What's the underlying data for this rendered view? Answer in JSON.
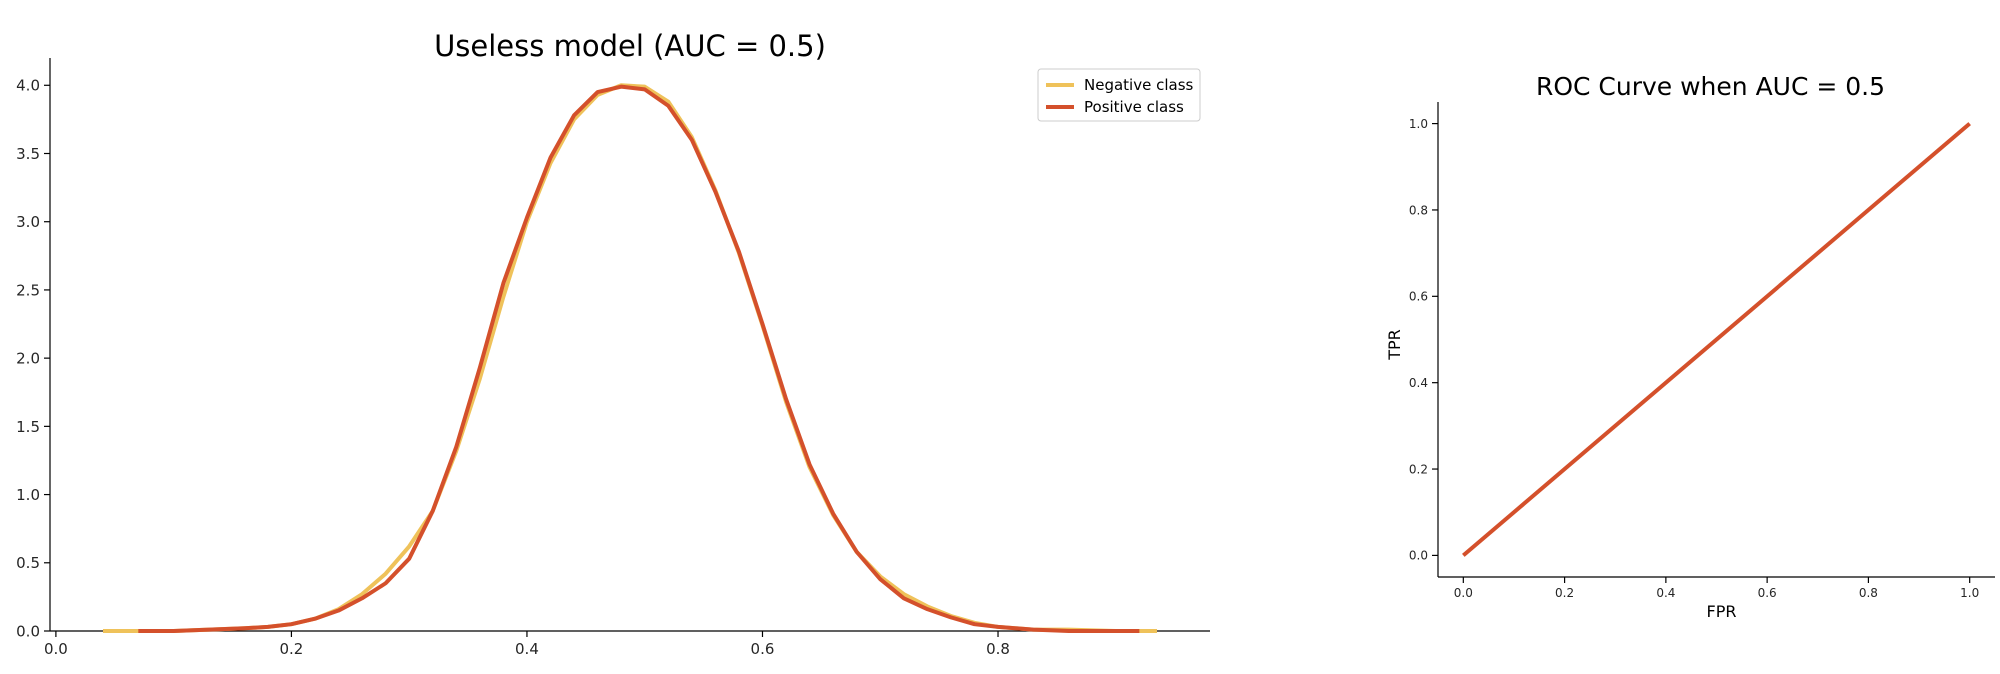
{
  "chart_data": [
    {
      "type": "line",
      "title": "Useless model (AUC = 0.5)",
      "xlabel": "",
      "ylabel": "",
      "xlim": [
        -0.005,
        0.98
      ],
      "ylim": [
        0,
        4.2
      ],
      "xticks": [
        0.0,
        0.2,
        0.4,
        0.6,
        0.8
      ],
      "yticks": [
        0.0,
        0.5,
        1.0,
        1.5,
        2.0,
        2.5,
        3.0,
        3.5,
        4.0
      ],
      "xtick_labels": [
        "0.0",
        "0.2",
        "0.4",
        "0.6",
        "0.8"
      ],
      "ytick_labels": [
        "0.0",
        "0.5",
        "1.0",
        "1.5",
        "2.0",
        "2.5",
        "3.0",
        "3.5",
        "4.0"
      ],
      "grid": false,
      "legend_position": "top-right",
      "series": [
        {
          "name": "Negative class",
          "color": "#EFC25A",
          "x": [
            0.04,
            0.07,
            0.1,
            0.13,
            0.16,
            0.18,
            0.2,
            0.22,
            0.24,
            0.26,
            0.28,
            0.3,
            0.32,
            0.34,
            0.36,
            0.38,
            0.4,
            0.42,
            0.44,
            0.46,
            0.48,
            0.5,
            0.52,
            0.54,
            0.56,
            0.58,
            0.6,
            0.62,
            0.64,
            0.66,
            0.68,
            0.7,
            0.72,
            0.74,
            0.76,
            0.78,
            0.8,
            0.83,
            0.86,
            0.9,
            0.935
          ],
          "y": [
            0.0,
            0.0,
            0.0,
            0.01,
            0.02,
            0.03,
            0.05,
            0.09,
            0.16,
            0.27,
            0.42,
            0.62,
            0.88,
            1.32,
            1.85,
            2.45,
            3.0,
            3.43,
            3.75,
            3.93,
            4.0,
            3.99,
            3.88,
            3.62,
            3.23,
            2.77,
            2.24,
            1.68,
            1.2,
            0.85,
            0.58,
            0.4,
            0.27,
            0.18,
            0.11,
            0.06,
            0.03,
            0.01,
            0.01,
            0.0,
            0.0
          ]
        },
        {
          "name": "Positive class",
          "color": "#D4502B",
          "x": [
            0.07,
            0.1,
            0.13,
            0.16,
            0.18,
            0.2,
            0.22,
            0.24,
            0.26,
            0.28,
            0.3,
            0.32,
            0.34,
            0.36,
            0.38,
            0.4,
            0.42,
            0.44,
            0.46,
            0.48,
            0.5,
            0.52,
            0.54,
            0.56,
            0.58,
            0.6,
            0.62,
            0.64,
            0.66,
            0.68,
            0.7,
            0.72,
            0.74,
            0.76,
            0.78,
            0.8,
            0.83,
            0.86,
            0.92
          ],
          "y": [
            0.0,
            0.0,
            0.01,
            0.02,
            0.03,
            0.05,
            0.09,
            0.15,
            0.24,
            0.35,
            0.53,
            0.88,
            1.35,
            1.93,
            2.55,
            3.03,
            3.47,
            3.78,
            3.95,
            3.99,
            3.97,
            3.85,
            3.6,
            3.22,
            2.78,
            2.25,
            1.7,
            1.22,
            0.86,
            0.58,
            0.38,
            0.24,
            0.16,
            0.1,
            0.05,
            0.03,
            0.01,
            0.0,
            0.0
          ]
        }
      ]
    },
    {
      "type": "line",
      "title": "ROC Curve when AUC = 0.5",
      "xlabel": "FPR",
      "ylabel": "TPR",
      "xlim": [
        -0.05,
        1.05
      ],
      "ylim": [
        -0.05,
        1.05
      ],
      "xticks": [
        0.0,
        0.2,
        0.4,
        0.6,
        0.8,
        1.0
      ],
      "yticks": [
        0.0,
        0.2,
        0.4,
        0.6,
        0.8,
        1.0
      ],
      "xtick_labels": [
        "0.0",
        "0.2",
        "0.4",
        "0.6",
        "0.8",
        "1.0"
      ],
      "ytick_labels": [
        "0.0",
        "0.2",
        "0.4",
        "0.6",
        "0.8",
        "1.0"
      ],
      "grid": false,
      "series": [
        {
          "color": "#D4502B",
          "x": [
            0.0,
            1.0
          ],
          "y": [
            0.0,
            1.0
          ]
        }
      ]
    }
  ]
}
